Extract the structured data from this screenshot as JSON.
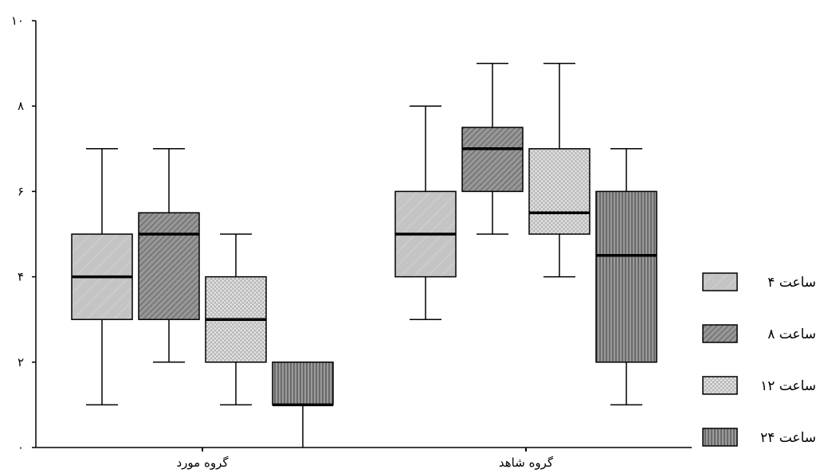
{
  "chart_data": {
    "type": "box",
    "title": "",
    "xlabel": "",
    "ylabel": "",
    "ylim": [
      0,
      10
    ],
    "yticks": [
      0,
      2,
      4,
      6,
      8,
      10
    ],
    "ytick_labels": [
      "۰",
      "۲",
      "۴",
      "۶",
      "۸",
      "۱۰"
    ],
    "grid": false,
    "legend_position": "right",
    "categories": [
      "گروه مورد",
      "گروه شاهد"
    ],
    "series": [
      {
        "name": "ساعت ۴",
        "fill": "#c4c4c4",
        "pattern": "diagonal-light",
        "boxes": [
          {
            "min": 1,
            "q1": 3,
            "median": 4,
            "q3": 5,
            "max": 7
          },
          {
            "min": 3,
            "q1": 4,
            "median": 5,
            "q3": 6,
            "max": 8
          }
        ]
      },
      {
        "name": "ساعت ۸",
        "fill": "#8c8c8c",
        "pattern": "diagonal-dense",
        "boxes": [
          {
            "min": 2,
            "q1": 3,
            "median": 5,
            "q3": 5.5,
            "max": 7
          },
          {
            "min": 5,
            "q1": 6,
            "median": 7,
            "q3": 7.5,
            "max": 9
          }
        ]
      },
      {
        "name": "ساعت ۱۲",
        "fill": "#dcdcdc",
        "pattern": "crosshatch",
        "boxes": [
          {
            "min": 1,
            "q1": 2,
            "median": 3,
            "q3": 4,
            "max": 5
          },
          {
            "min": 4,
            "q1": 5,
            "median": 5.5,
            "q3": 7,
            "max": 9
          }
        ]
      },
      {
        "name": "ساعت ۲۴",
        "fill": "#8c8c8c",
        "pattern": "vertical",
        "boxes": [
          {
            "min": 0,
            "q1": 1,
            "median": 1,
            "q3": 2,
            "max": 2
          },
          {
            "min": 1,
            "q1": 2,
            "median": 4.5,
            "q3": 6,
            "max": 7
          }
        ]
      }
    ]
  }
}
